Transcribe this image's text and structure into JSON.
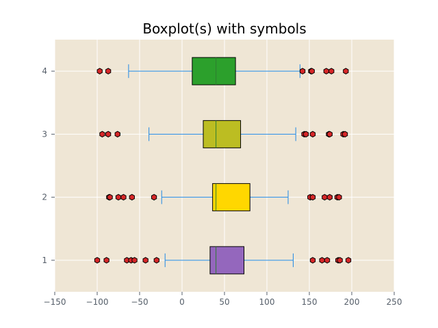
{
  "chart_data": {
    "type": "boxplot",
    "orientation": "horizontal",
    "title": "Boxplot(s) with symbols",
    "xlabel": "",
    "ylabel": "",
    "xlim": [
      -150,
      250
    ],
    "ylim": [
      0.5,
      4.5
    ],
    "xticks": [
      -150,
      -100,
      -50,
      0,
      50,
      100,
      150,
      200,
      250
    ],
    "xtick_labels": [
      "−150",
      "−100",
      "−50",
      "0",
      "50",
      "100",
      "150",
      "200",
      "250"
    ],
    "yticks": [
      1,
      2,
      3,
      4
    ],
    "ytick_labels": [
      "1",
      "2",
      "3",
      "4"
    ],
    "grid": true,
    "colors": {
      "plot_background": "#efe6d5",
      "grid": "#ffffff",
      "whisker": "#1e88e5",
      "median": "#2e7d32",
      "flier_fill": "#d62728",
      "flier_edge": "#000000",
      "box_edge": "#000000",
      "tick_text": "#555e69"
    },
    "boxes": [
      {
        "position": 1,
        "color": "#9467bd",
        "whislo": -20,
        "q1": 33,
        "med": 40,
        "q3": 73,
        "whishi": 131,
        "fliers": [
          -100,
          -89,
          -65,
          -60,
          -56,
          -43,
          -30,
          154,
          165,
          171,
          184,
          186,
          196
        ]
      },
      {
        "position": 2,
        "color": "#ffd700",
        "whislo": -24,
        "q1": 36,
        "med": 40,
        "q3": 80,
        "whishi": 125,
        "fliers": [
          -86,
          -85,
          -75,
          -69,
          -59,
          -33,
          151,
          154,
          168,
          174,
          183,
          185
        ]
      },
      {
        "position": 3,
        "color": "#bcbd22",
        "whislo": -39,
        "q1": 25,
        "med": 40,
        "q3": 69,
        "whishi": 134,
        "fliers": [
          -94,
          -87,
          -76,
          144,
          146,
          154,
          173,
          174,
          190,
          192
        ]
      },
      {
        "position": 4,
        "color": "#2ca02c",
        "whislo": -63,
        "q1": 12,
        "med": 40,
        "q3": 63,
        "whishi": 139,
        "fliers": [
          -97,
          -87,
          142,
          152,
          153,
          170,
          176,
          193
        ]
      }
    ]
  }
}
